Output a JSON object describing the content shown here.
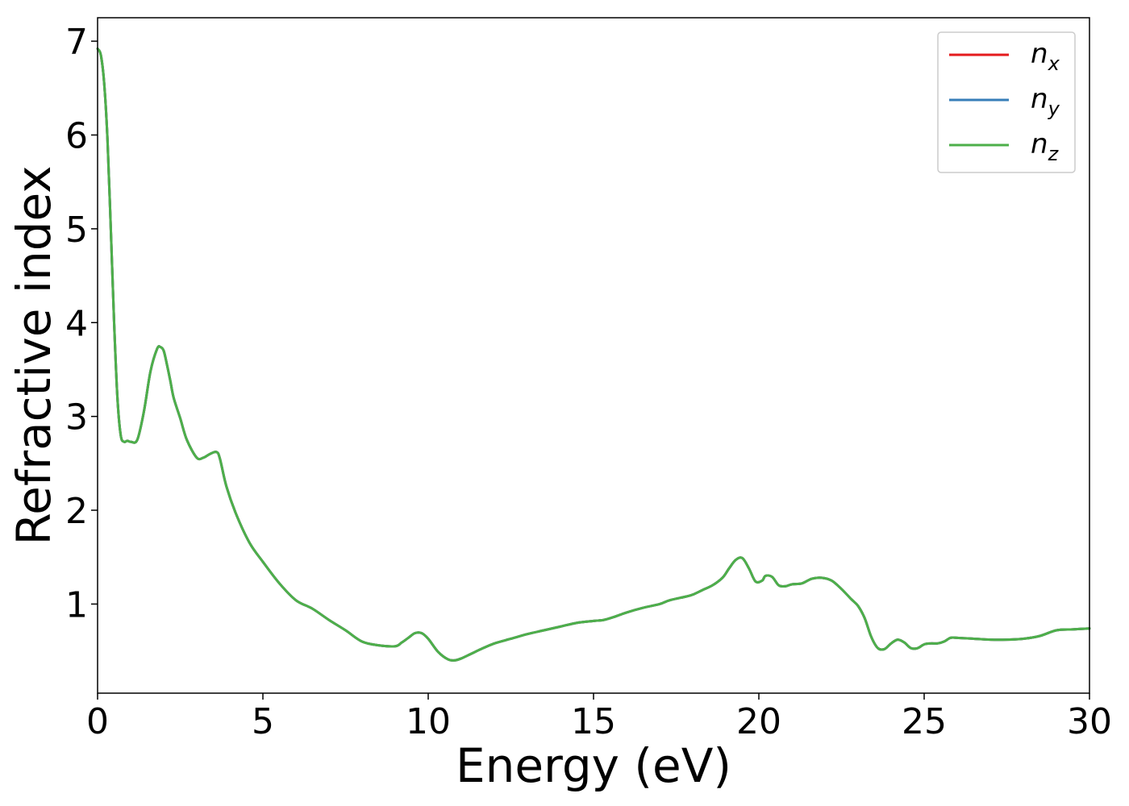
{
  "chart_data": {
    "type": "line",
    "xlabel": "Energy (eV)",
    "ylabel": "Refractive index",
    "xlim": [
      0,
      30
    ],
    "ylim": [
      0.05,
      7.25
    ],
    "xticks": [
      "0",
      "5",
      "10",
      "15",
      "20",
      "25",
      "30"
    ],
    "yticks": [
      "1",
      "2",
      "3",
      "4",
      "5",
      "6",
      "7"
    ],
    "grid": false,
    "legend_position": "top-right",
    "series": [
      {
        "name": "n_x",
        "label_main": "n",
        "label_sub": "x",
        "color": "#e41a1c",
        "x": [
          0,
          0.1,
          0.2,
          0.3,
          0.4,
          0.5,
          0.6,
          0.7,
          0.8,
          0.9,
          1.0,
          1.2,
          1.4,
          1.6,
          1.8,
          1.9,
          2.0,
          2.1,
          2.2,
          2.3,
          2.5,
          2.7,
          3.0,
          3.2,
          3.4,
          3.6,
          3.7,
          3.9,
          4.2,
          4.6,
          5.0,
          5.5,
          6.0,
          6.5,
          7.0,
          7.5,
          8.0,
          8.5,
          9.0,
          9.2,
          9.4,
          9.6,
          9.8,
          10.0,
          10.3,
          10.6,
          10.8,
          11.0,
          11.3,
          11.6,
          12.0,
          12.5,
          13.0,
          13.5,
          14.0,
          14.5,
          15.0,
          15.3,
          15.6,
          16.0,
          16.5,
          17.0,
          17.3,
          17.8,
          18.0,
          18.3,
          18.6,
          18.9,
          19.1,
          19.3,
          19.5,
          19.7,
          19.9,
          20.1,
          20.2,
          20.4,
          20.6,
          20.8,
          21.0,
          21.3,
          21.6,
          21.9,
          22.2,
          22.5,
          22.8,
          23.0,
          23.2,
          23.4,
          23.6,
          23.8,
          24.0,
          24.2,
          24.4,
          24.6,
          24.8,
          25.0,
          25.2,
          25.4,
          25.6,
          25.8,
          26.0,
          26.5,
          27.0,
          27.5,
          28.0,
          28.5,
          29.0,
          29.5,
          30.0
        ],
        "y": [
          6.92,
          6.85,
          6.55,
          5.95,
          5.0,
          4.0,
          3.2,
          2.8,
          2.73,
          2.74,
          2.73,
          2.75,
          3.05,
          3.48,
          3.72,
          3.74,
          3.7,
          3.55,
          3.38,
          3.2,
          2.98,
          2.75,
          2.56,
          2.56,
          2.6,
          2.62,
          2.55,
          2.25,
          1.95,
          1.65,
          1.45,
          1.22,
          1.04,
          0.95,
          0.83,
          0.72,
          0.6,
          0.56,
          0.55,
          0.59,
          0.64,
          0.69,
          0.69,
          0.63,
          0.49,
          0.41,
          0.4,
          0.42,
          0.47,
          0.52,
          0.58,
          0.63,
          0.68,
          0.72,
          0.76,
          0.8,
          0.82,
          0.83,
          0.86,
          0.91,
          0.96,
          1.0,
          1.04,
          1.08,
          1.1,
          1.15,
          1.2,
          1.28,
          1.38,
          1.47,
          1.49,
          1.38,
          1.24,
          1.25,
          1.3,
          1.29,
          1.2,
          1.19,
          1.21,
          1.22,
          1.27,
          1.28,
          1.25,
          1.16,
          1.05,
          0.98,
          0.85,
          0.65,
          0.53,
          0.52,
          0.58,
          0.62,
          0.59,
          0.53,
          0.53,
          0.57,
          0.58,
          0.58,
          0.6,
          0.64,
          0.64,
          0.63,
          0.62,
          0.62,
          0.63,
          0.66,
          0.72,
          0.73,
          0.74
        ]
      },
      {
        "name": "n_y",
        "label_main": "n",
        "label_sub": "y",
        "color": "#377eb8",
        "x": [
          0,
          0.1,
          0.2,
          0.3,
          0.4,
          0.5,
          0.6,
          0.7,
          0.8,
          0.9,
          1.0,
          1.2,
          1.4,
          1.6,
          1.8,
          1.9,
          2.0,
          2.1,
          2.2,
          2.3,
          2.5,
          2.7,
          3.0,
          3.2,
          3.4,
          3.6,
          3.7,
          3.9,
          4.2,
          4.6,
          5.0,
          5.5,
          6.0,
          6.5,
          7.0,
          7.5,
          8.0,
          8.5,
          9.0,
          9.2,
          9.4,
          9.6,
          9.8,
          10.0,
          10.3,
          10.6,
          10.8,
          11.0,
          11.3,
          11.6,
          12.0,
          12.5,
          13.0,
          13.5,
          14.0,
          14.5,
          15.0,
          15.3,
          15.6,
          16.0,
          16.5,
          17.0,
          17.3,
          17.8,
          18.0,
          18.3,
          18.6,
          18.9,
          19.1,
          19.3,
          19.5,
          19.7,
          19.9,
          20.1,
          20.2,
          20.4,
          20.6,
          20.8,
          21.0,
          21.3,
          21.6,
          21.9,
          22.2,
          22.5,
          22.8,
          23.0,
          23.2,
          23.4,
          23.6,
          23.8,
          24.0,
          24.2,
          24.4,
          24.6,
          24.8,
          25.0,
          25.2,
          25.4,
          25.6,
          25.8,
          26.0,
          26.5,
          27.0,
          27.5,
          28.0,
          28.5,
          29.0,
          29.5,
          30.0
        ],
        "y": [
          6.92,
          6.85,
          6.55,
          5.95,
          5.0,
          4.0,
          3.2,
          2.8,
          2.73,
          2.74,
          2.73,
          2.75,
          3.05,
          3.48,
          3.72,
          3.74,
          3.7,
          3.55,
          3.38,
          3.2,
          2.98,
          2.75,
          2.56,
          2.56,
          2.6,
          2.62,
          2.55,
          2.25,
          1.95,
          1.65,
          1.45,
          1.22,
          1.04,
          0.95,
          0.83,
          0.72,
          0.6,
          0.56,
          0.55,
          0.59,
          0.64,
          0.69,
          0.69,
          0.63,
          0.49,
          0.41,
          0.4,
          0.42,
          0.47,
          0.52,
          0.58,
          0.63,
          0.68,
          0.72,
          0.76,
          0.8,
          0.82,
          0.83,
          0.86,
          0.91,
          0.96,
          1.0,
          1.04,
          1.08,
          1.1,
          1.15,
          1.2,
          1.28,
          1.38,
          1.47,
          1.49,
          1.38,
          1.24,
          1.25,
          1.3,
          1.29,
          1.2,
          1.19,
          1.21,
          1.22,
          1.27,
          1.28,
          1.25,
          1.16,
          1.05,
          0.98,
          0.85,
          0.65,
          0.53,
          0.52,
          0.58,
          0.62,
          0.59,
          0.53,
          0.53,
          0.57,
          0.58,
          0.58,
          0.6,
          0.64,
          0.64,
          0.63,
          0.62,
          0.62,
          0.63,
          0.66,
          0.72,
          0.73,
          0.74
        ]
      },
      {
        "name": "n_z",
        "label_main": "n",
        "label_sub": "z",
        "color": "#4daf4a",
        "x": [
          0,
          0.1,
          0.2,
          0.3,
          0.4,
          0.5,
          0.6,
          0.7,
          0.8,
          0.9,
          1.0,
          1.2,
          1.4,
          1.6,
          1.8,
          1.9,
          2.0,
          2.1,
          2.2,
          2.3,
          2.5,
          2.7,
          3.0,
          3.2,
          3.4,
          3.6,
          3.7,
          3.9,
          4.2,
          4.6,
          5.0,
          5.5,
          6.0,
          6.5,
          7.0,
          7.5,
          8.0,
          8.5,
          9.0,
          9.2,
          9.4,
          9.6,
          9.8,
          10.0,
          10.3,
          10.6,
          10.8,
          11.0,
          11.3,
          11.6,
          12.0,
          12.5,
          13.0,
          13.5,
          14.0,
          14.5,
          15.0,
          15.3,
          15.6,
          16.0,
          16.5,
          17.0,
          17.3,
          17.8,
          18.0,
          18.3,
          18.6,
          18.9,
          19.1,
          19.3,
          19.5,
          19.7,
          19.9,
          20.1,
          20.2,
          20.4,
          20.6,
          20.8,
          21.0,
          21.3,
          21.6,
          21.9,
          22.2,
          22.5,
          22.8,
          23.0,
          23.2,
          23.4,
          23.6,
          23.8,
          24.0,
          24.2,
          24.4,
          24.6,
          24.8,
          25.0,
          25.2,
          25.4,
          25.6,
          25.8,
          26.0,
          26.5,
          27.0,
          27.5,
          28.0,
          28.5,
          29.0,
          29.5,
          30.0
        ],
        "y": [
          6.92,
          6.85,
          6.55,
          5.95,
          5.0,
          4.0,
          3.2,
          2.8,
          2.73,
          2.74,
          2.73,
          2.75,
          3.05,
          3.48,
          3.72,
          3.74,
          3.7,
          3.55,
          3.38,
          3.2,
          2.98,
          2.75,
          2.56,
          2.56,
          2.6,
          2.62,
          2.55,
          2.25,
          1.95,
          1.65,
          1.45,
          1.22,
          1.04,
          0.95,
          0.83,
          0.72,
          0.6,
          0.56,
          0.55,
          0.59,
          0.64,
          0.69,
          0.69,
          0.63,
          0.49,
          0.41,
          0.4,
          0.42,
          0.47,
          0.52,
          0.58,
          0.63,
          0.68,
          0.72,
          0.76,
          0.8,
          0.82,
          0.83,
          0.86,
          0.91,
          0.96,
          1.0,
          1.04,
          1.08,
          1.1,
          1.15,
          1.2,
          1.28,
          1.38,
          1.47,
          1.49,
          1.38,
          1.24,
          1.25,
          1.3,
          1.29,
          1.2,
          1.19,
          1.21,
          1.22,
          1.27,
          1.28,
          1.25,
          1.16,
          1.05,
          0.98,
          0.85,
          0.65,
          0.53,
          0.52,
          0.58,
          0.62,
          0.59,
          0.53,
          0.53,
          0.57,
          0.58,
          0.58,
          0.6,
          0.64,
          0.64,
          0.63,
          0.62,
          0.62,
          0.63,
          0.66,
          0.72,
          0.73,
          0.74
        ]
      }
    ]
  }
}
